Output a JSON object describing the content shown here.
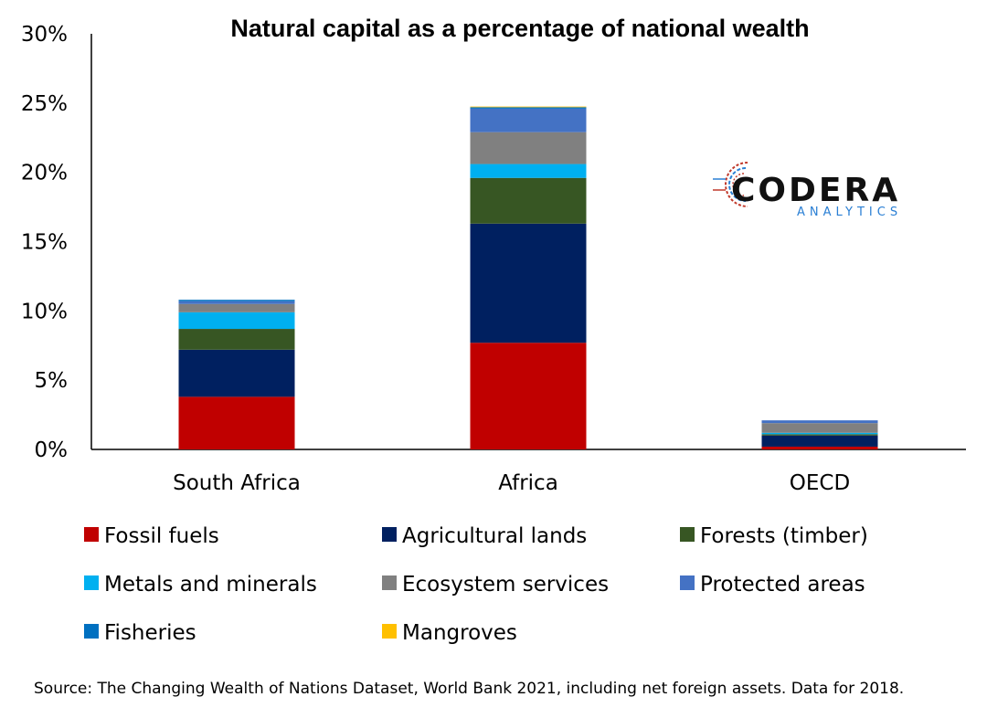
{
  "colors": {
    "Fossil fuels": "#c00000",
    "Agricultural lands": "#002060",
    "Forests (timber)": "#375623",
    "Metals and minerals": "#00b0f0",
    "Ecosystem services": "#808080",
    "Protected areas": "#4472c4",
    "Fisheries": "#0070c0",
    "Mangroves": "#ffc000"
  },
  "logo": {
    "name": "CODERA",
    "sub": "ANALYTICS"
  },
  "source": "Source: The Changing Wealth of Nations Dataset, World Bank 2021, including net foreign assets. Data for 2018.",
  "chart_data": {
    "type": "bar",
    "stacked": true,
    "title": "Natural capital as a percentage of national wealth",
    "xlabel": "",
    "ylabel": "",
    "categories": [
      "South Africa",
      "Africa",
      "OECD"
    ],
    "ylim": [
      0,
      30
    ],
    "yticks": [
      0,
      5,
      10,
      15,
      20,
      25,
      30
    ],
    "ytick_labels": [
      "0%",
      "5%",
      "10%",
      "15%",
      "20%",
      "25%",
      "30%"
    ],
    "legend_position": "bottom",
    "grid": false,
    "series": [
      {
        "name": "Fossil fuels",
        "values": [
          3.8,
          7.7,
          0.2
        ]
      },
      {
        "name": "Agricultural lands",
        "values": [
          3.4,
          8.6,
          0.8
        ]
      },
      {
        "name": "Forests (timber)",
        "values": [
          1.5,
          3.3,
          0.1
        ]
      },
      {
        "name": "Metals and minerals",
        "values": [
          1.2,
          1.0,
          0.1
        ]
      },
      {
        "name": "Ecosystem services",
        "values": [
          0.6,
          2.3,
          0.7
        ]
      },
      {
        "name": "Protected areas",
        "values": [
          0.2,
          1.7,
          0.2
        ]
      },
      {
        "name": "Fisheries",
        "values": [
          0.1,
          0.1,
          0.0
        ]
      },
      {
        "name": "Mangroves",
        "values": [
          0.0,
          0.05,
          0.0
        ]
      }
    ]
  }
}
